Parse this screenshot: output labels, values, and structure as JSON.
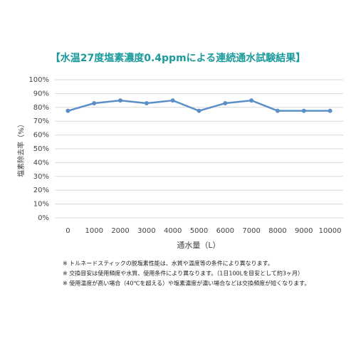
{
  "chart_data": {
    "type": "line",
    "title": "【水温27度塩素濃度0.4ppmによる連続通水試験結果】",
    "y_label": "塩素除去率（%）",
    "x_label": "通水量（L）",
    "categories": [
      "0",
      "1000",
      "2000",
      "3000",
      "4000",
      "5000",
      "6000",
      "7000",
      "8000",
      "9000",
      "10000"
    ],
    "series": [
      {
        "name": "塩素除去率",
        "color": "#5b8fc8",
        "values": [
          77.5,
          83,
          85,
          83,
          85,
          77.5,
          83,
          85,
          77.5,
          77.5,
          77.5
        ]
      }
    ],
    "ylim": [
      0,
      100
    ],
    "yticks": [
      {
        "value": 0,
        "label": "0%"
      },
      {
        "value": 10,
        "label": "10%"
      },
      {
        "value": 20,
        "label": "20%"
      },
      {
        "value": 30,
        "label": "30%"
      },
      {
        "value": 40,
        "label": "40%"
      },
      {
        "value": 50,
        "label": "50%"
      },
      {
        "value": 60,
        "label": "60%"
      },
      {
        "value": 70,
        "label": "70%"
      },
      {
        "value": 80,
        "label": "80%"
      },
      {
        "value": 90,
        "label": "90%"
      },
      {
        "value": 100,
        "label": "100%"
      }
    ],
    "grid": true,
    "annotations": [
      "※ トルネードスティックの脱塩素性能は、水質や温度等の条件により異なります。",
      "※ 交換目安は使用頻度や水質、使用条件により異なります。（1日100Lを目安として約3ヶ月）",
      "※ 使用温度が高い場合（40℃を超える）や塩素濃度が濃い場合などは交換頻度が短くなります。"
    ]
  }
}
